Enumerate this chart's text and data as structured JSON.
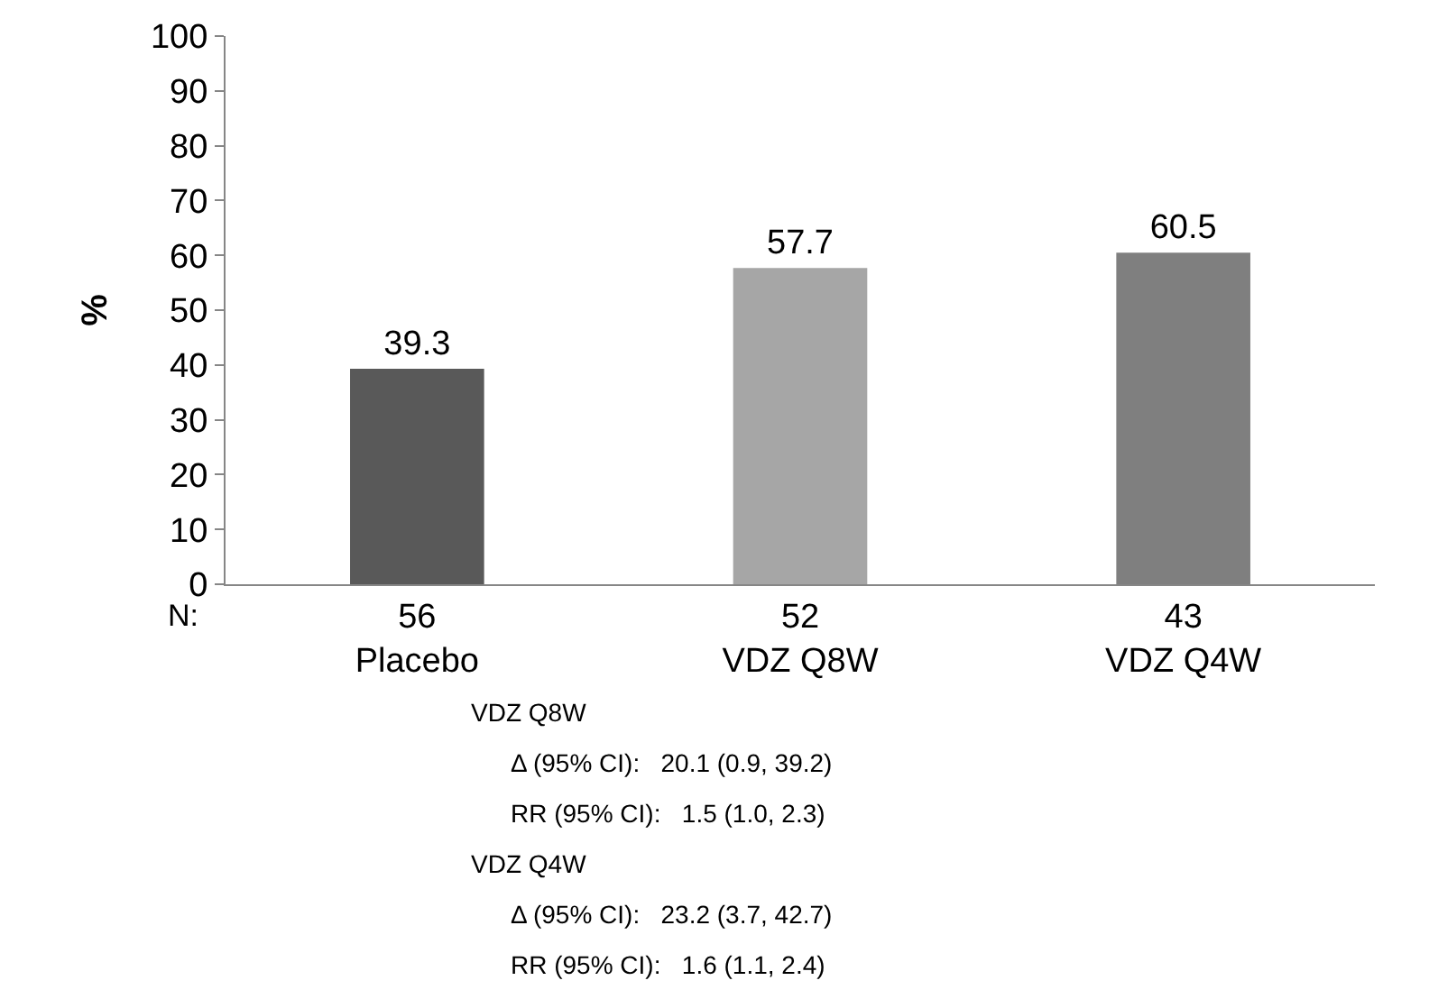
{
  "chart_data": {
    "type": "bar",
    "ylabel": "%",
    "categories": [
      "56\nPlacebo",
      "52\nVDZ Q8W",
      "43\nVDZ Q4W"
    ],
    "values": [
      39.3,
      57.7,
      60.5
    ],
    "colors": [
      "#595959",
      "#a6a6a6",
      "#7f7f7f"
    ],
    "ylim": [
      0,
      100
    ],
    "yticks": [
      0,
      10,
      20,
      30,
      40,
      50,
      60,
      70,
      80,
      90,
      100
    ],
    "grid": false,
    "data_labels": true,
    "annotations": [
      "N:",
      "VDZ Q8W",
      "Δ (95% CI):   20.1 (0.9, 39.2)",
      "RR (95% CI):   1.5 (1.0, 2.3)",
      "VDZ Q4W",
      "Δ (95% CI):   23.2 (3.7, 42.7)",
      "RR (95% CI):   1.6 (1.1, 2.4)"
    ]
  }
}
